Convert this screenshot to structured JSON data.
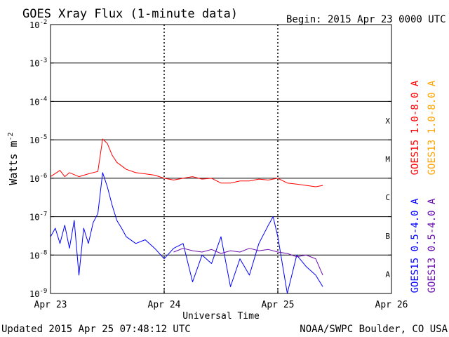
{
  "header": {
    "title": "GOES Xray Flux (1-minute data)",
    "begin": "Begin:  2015 Apr 23 0000 UTC"
  },
  "footer": {
    "updated": "Updated 2015 Apr 25 07:48:12 UTC",
    "credit": "NOAA/SWPC Boulder, CO USA"
  },
  "chart_data": {
    "type": "line",
    "title": "GOES Xray Flux (1-minute data)",
    "xlabel": "Universal Time",
    "ylabel": "Watts m",
    "ylabel_sup": "-2",
    "yscale": "log",
    "ylim": [
      1e-09,
      0.01
    ],
    "xlim": [
      0,
      72
    ],
    "x_unit": "hours since 2015 Apr 23 0000 UTC",
    "x_ticks": [
      {
        "x": 0,
        "label": "Apr 23"
      },
      {
        "x": 24,
        "label": "Apr 24"
      },
      {
        "x": 48,
        "label": "Apr 25"
      },
      {
        "x": 72,
        "label": "Apr 26"
      }
    ],
    "y_ticks": [
      {
        "exp": -2,
        "base": "10",
        "sup": "-2"
      },
      {
        "exp": -3,
        "base": "10",
        "sup": "-3"
      },
      {
        "exp": -4,
        "base": "10",
        "sup": "-4"
      },
      {
        "exp": -5,
        "base": "10",
        "sup": "-5"
      },
      {
        "exp": -6,
        "base": "10",
        "sup": "-6"
      },
      {
        "exp": -7,
        "base": "10",
        "sup": "-7"
      },
      {
        "exp": -8,
        "base": "10",
        "sup": "-8"
      },
      {
        "exp": -9,
        "base": "10",
        "sup": "-9"
      }
    ],
    "flare_classes": [
      {
        "label": "X",
        "exp": -4
      },
      {
        "label": "M",
        "exp": -5
      },
      {
        "label": "C",
        "exp": -6
      },
      {
        "label": "B",
        "exp": -7
      },
      {
        "label": "A",
        "exp": -8
      }
    ],
    "grid": "horizontal lines at each decade 1e-8..1e-3, dotted vertical lines at day boundaries",
    "legend": [
      {
        "name": "GOES15 1.0-8.0 A",
        "color": "#ff0000"
      },
      {
        "name": "GOES13 1.0-8.0 A",
        "color": "#ffa500"
      },
      {
        "name": "GOES15 0.5-4.0 A",
        "color": "#0000ff"
      },
      {
        "name": "GOES13 0.5-4.0 A",
        "color": "#6a0dad"
      }
    ],
    "series": [
      {
        "name": "GOES15 1.0-8.0 A",
        "color": "#ff0000",
        "x": [
          0,
          2,
          3,
          4,
          6,
          8,
          10,
          11,
          12,
          13,
          14,
          16,
          18,
          20,
          22,
          24,
          26,
          28,
          30,
          32,
          34,
          36,
          38,
          40,
          42,
          44,
          46,
          48,
          50,
          52,
          54,
          56,
          57.5
        ],
        "y": [
          1.1e-06,
          1.6e-06,
          1.1e-06,
          1.4e-06,
          1.1e-06,
          1.3e-06,
          1.5e-06,
          1.05e-05,
          8e-06,
          4e-06,
          2.6e-06,
          1.7e-06,
          1.4e-06,
          1.3e-06,
          1.2e-06,
          1e-06,
          9e-07,
          1e-06,
          1.1e-06,
          9.5e-07,
          1e-06,
          7.5e-07,
          7.5e-07,
          8.5e-07,
          8.5e-07,
          9.5e-07,
          9e-07,
          1e-06,
          7.5e-07,
          7e-07,
          6.5e-07,
          6e-07,
          6.5e-07
        ]
      },
      {
        "name": "GOES15 0.5-4.0 A",
        "color": "#0000ff",
        "x": [
          0,
          1,
          2,
          3,
          4,
          5,
          6,
          7,
          8,
          9,
          10,
          11,
          12,
          13,
          14,
          15,
          16,
          18,
          20,
          22,
          24,
          26,
          28,
          30,
          32,
          34,
          36,
          38,
          40,
          42,
          44,
          46,
          47,
          48,
          50,
          52,
          54,
          56,
          57.5
        ],
        "y": [
          3e-08,
          5e-08,
          2e-08,
          6e-08,
          1.5e-08,
          8e-08,
          3e-09,
          5e-08,
          2e-08,
          7e-08,
          1.2e-07,
          1.4e-06,
          6e-07,
          2e-07,
          8e-08,
          5e-08,
          3e-08,
          2e-08,
          2.5e-08,
          1.5e-08,
          8e-09,
          1.5e-08,
          2e-08,
          2e-09,
          1e-08,
          6e-09,
          3e-08,
          1.5e-09,
          8e-09,
          3e-09,
          2e-08,
          6e-08,
          1e-07,
          3e-08,
          1e-09,
          1e-08,
          5e-09,
          3e-09,
          1.5e-09
        ]
      },
      {
        "name": "GOES13 0.5-4.0 A",
        "color": "#6a0dad",
        "x": [
          26,
          28,
          30,
          32,
          34,
          36,
          38,
          40,
          42,
          44,
          46,
          48,
          50,
          52,
          54,
          56,
          57.5
        ],
        "y": [
          1.2e-08,
          1.5e-08,
          1.3e-08,
          1.2e-08,
          1.4e-08,
          1.1e-08,
          1.3e-08,
          1.2e-08,
          1.5e-08,
          1.3e-08,
          1.4e-08,
          1.2e-08,
          1.1e-08,
          9e-09,
          1e-08,
          8e-09,
          3e-09
        ]
      }
    ]
  }
}
